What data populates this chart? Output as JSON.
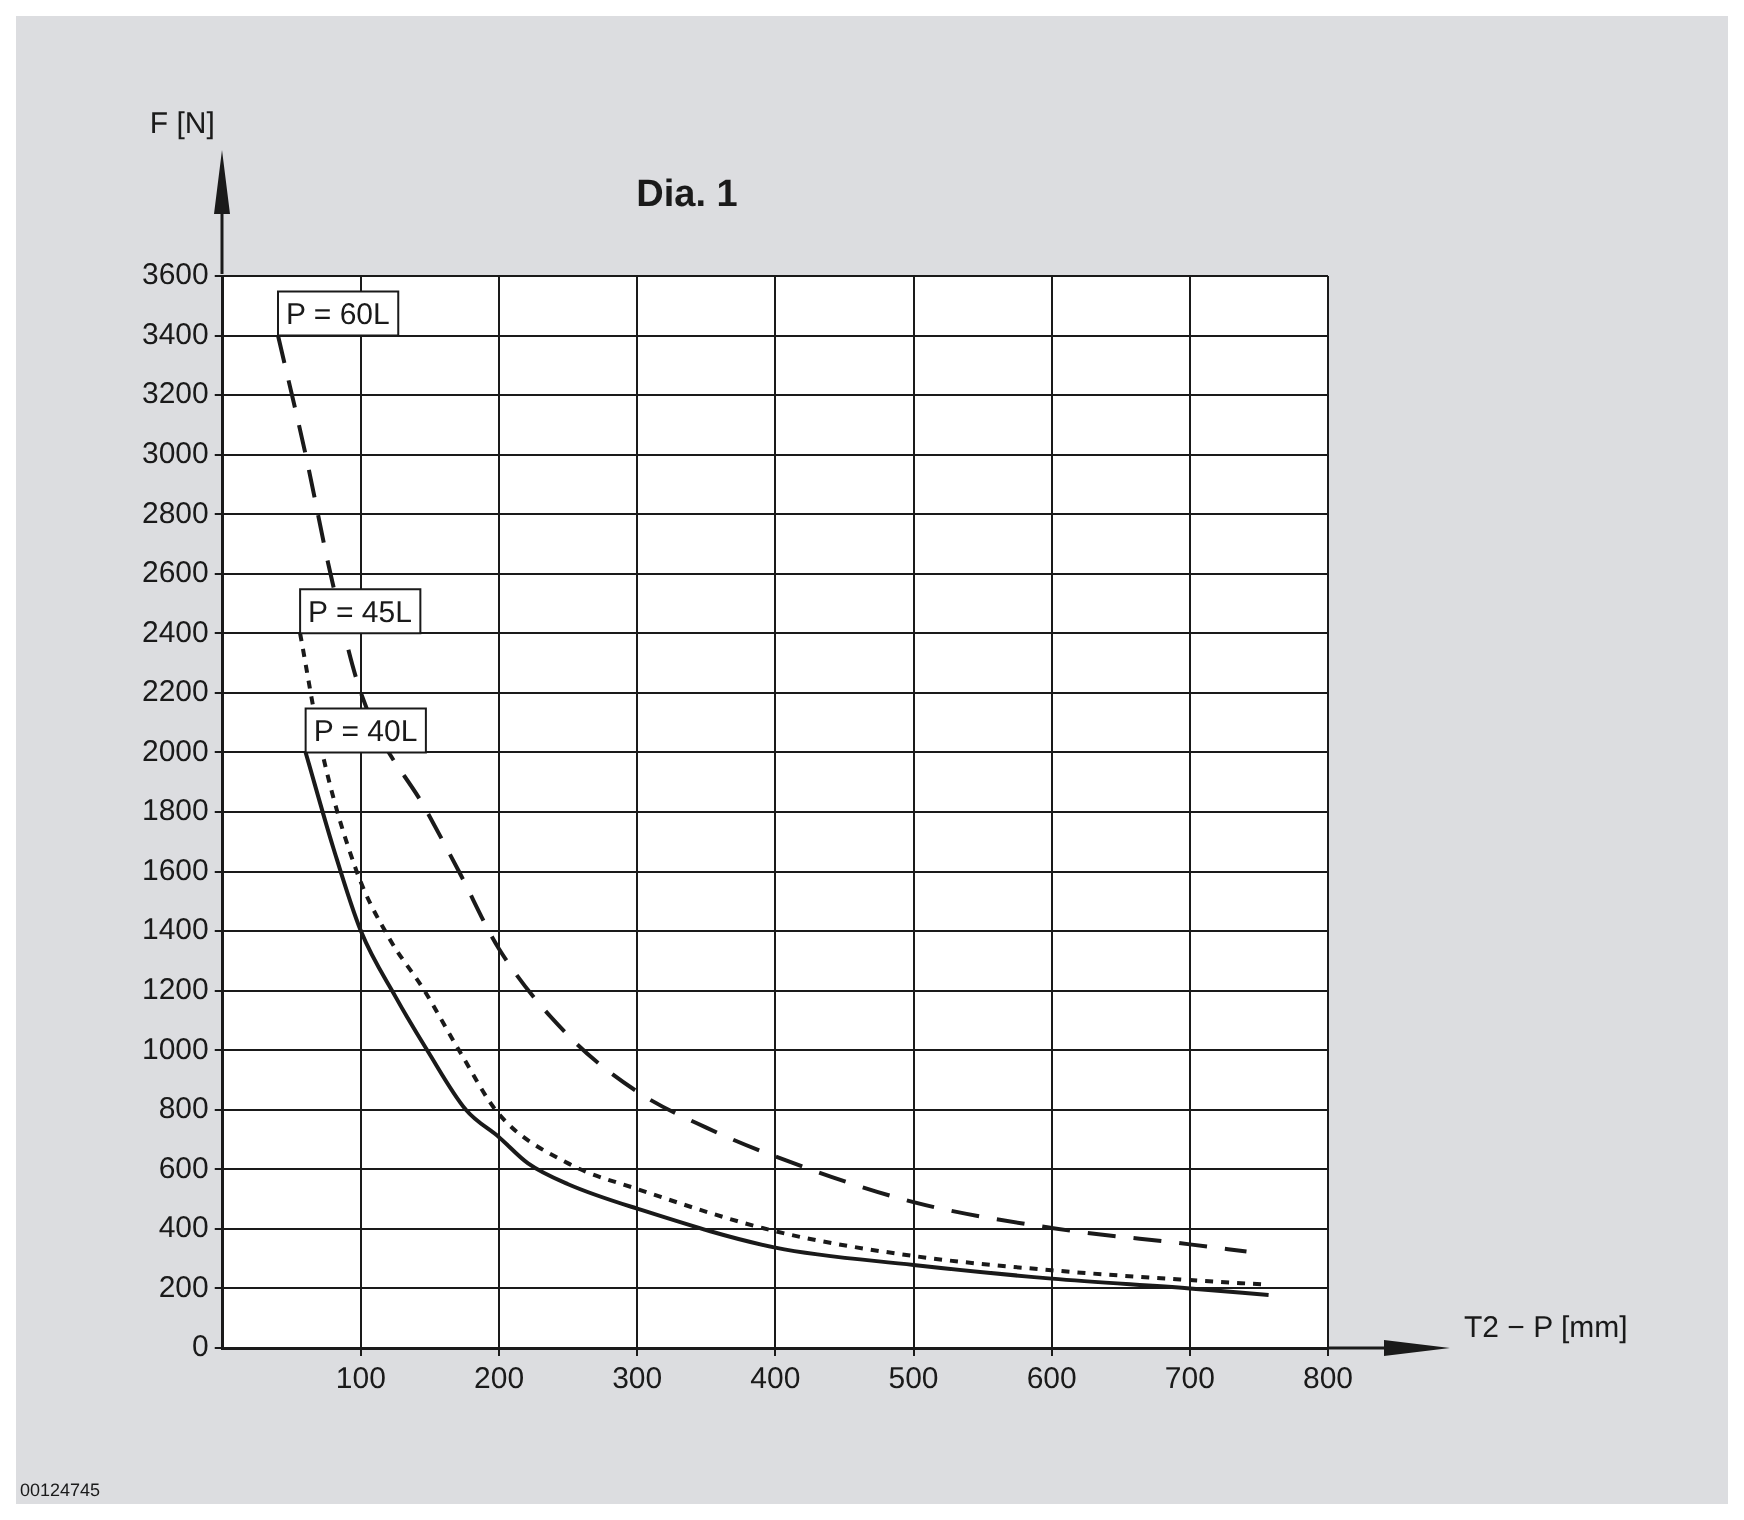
{
  "chart_data": {
    "type": "line",
    "title": "Dia. 1",
    "xlabel": "T2 − P [mm]",
    "ylabel": "F [N]",
    "xlim": [
      0,
      800
    ],
    "xticks": [
      100,
      200,
      300,
      400,
      500,
      600,
      700,
      800
    ],
    "ylim": [
      0,
      3600
    ],
    "yticks": [
      0,
      200,
      400,
      600,
      800,
      1000,
      1200,
      1400,
      1600,
      1800,
      2000,
      2200,
      2400,
      2600,
      2800,
      3000,
      3200,
      3400,
      3600
    ],
    "grid": true,
    "legend": false,
    "marker": "none",
    "series": [
      {
        "name": "P = 60L",
        "color": "#1a1a1a",
        "line_style": "dashed",
        "x": [
          40,
          60,
          78,
          100,
          148,
          171,
          200,
          250,
          300,
          350,
          400,
          500,
          600,
          700,
          741
        ],
        "values": [
          3400,
          3000,
          2600,
          2200,
          1800,
          1600,
          1340,
          1050,
          861,
          740,
          643,
          490,
          403,
          348,
          324
        ]
      },
      {
        "name": "P = 45L",
        "color": "#1a1a1a",
        "line_style": "dotted",
        "x": [
          56,
          72,
          97,
          120,
          146,
          171,
          200,
          250,
          300,
          400,
          500,
          600,
          700,
          755
        ],
        "values": [
          2400,
          2000,
          1600,
          1380,
          1200,
          1000,
          785,
          620,
          534,
          392,
          309,
          261,
          228,
          213
        ]
      },
      {
        "name": "P = 40L",
        "color": "#1a1a1a",
        "line_style": "solid",
        "x": [
          60,
          80,
          100,
          125,
          148,
          176,
          200,
          221,
          250,
          300,
          400,
          500,
          600,
          700,
          757
        ],
        "values": [
          2000,
          1680,
          1400,
          1180,
          1000,
          800,
          708,
          620,
          550,
          468,
          337,
          279,
          233,
          200,
          178
        ]
      }
    ],
    "annotations": [
      "00124745"
    ]
  }
}
